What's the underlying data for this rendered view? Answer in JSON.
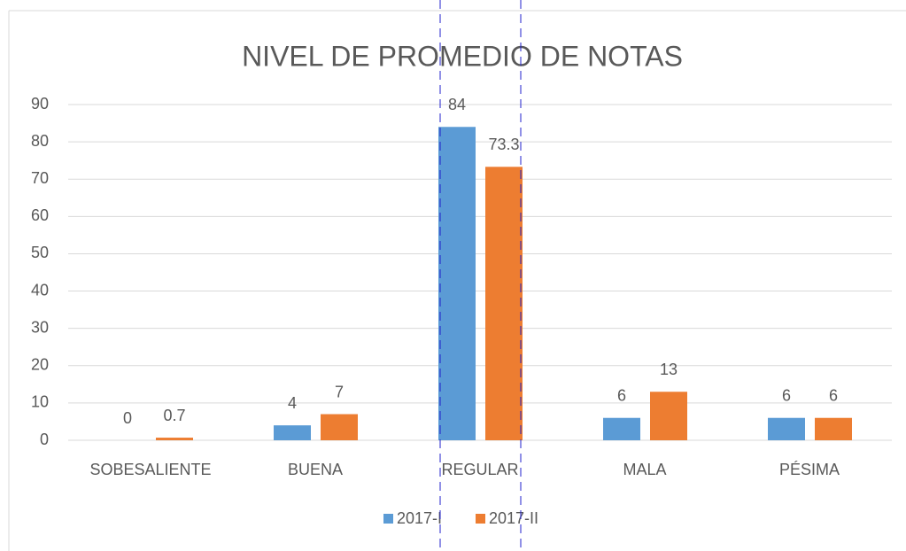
{
  "chart_data": {
    "type": "bar",
    "title": "NIVEL DE PROMEDIO DE NOTAS",
    "categories": [
      "SOBESALIENTE",
      "BUENA",
      "REGULAR",
      "MALA",
      "PÉSIMA"
    ],
    "series": [
      {
        "name": "2017-I",
        "color": "#5b9bd5",
        "values": [
          0,
          4,
          84,
          6,
          6
        ]
      },
      {
        "name": "2017-II",
        "color": "#ed7d31",
        "values": [
          0.7,
          7,
          73.3,
          13,
          6
        ]
      }
    ],
    "ylim": [
      0,
      90
    ],
    "yticks": [
      0,
      10,
      20,
      30,
      40,
      50,
      60,
      70,
      80,
      90
    ],
    "grid": true,
    "legend": "bottom"
  }
}
